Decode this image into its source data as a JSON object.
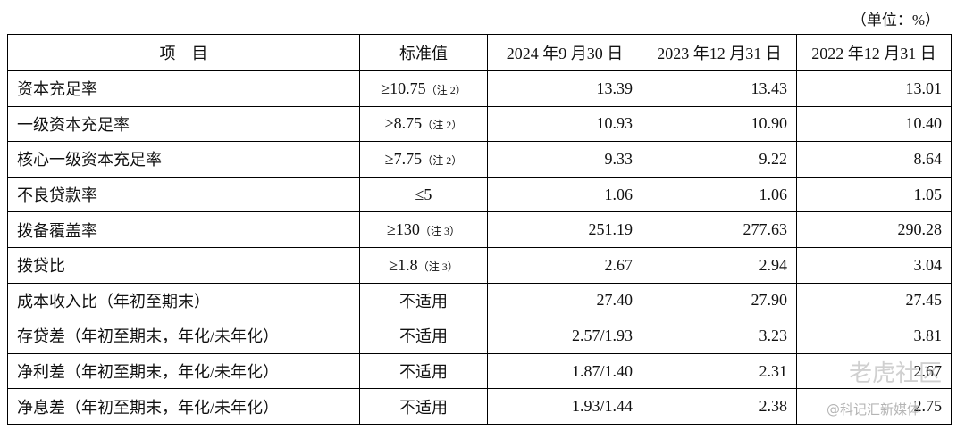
{
  "unit_note": "（单位：%）",
  "table": {
    "headers": [
      "项　目",
      "标准值",
      "2024 年9 月30 日",
      "2023 年12 月31 日",
      "2022 年12 月31 日"
    ],
    "rows": [
      {
        "item": "资本充足率",
        "standard": "≥10.75",
        "note": "（注 2）",
        "values": [
          "13.39",
          "13.43",
          "13.01"
        ]
      },
      {
        "item": "一级资本充足率",
        "standard": "≥8.75",
        "note": "（注 2）",
        "values": [
          "10.93",
          "10.90",
          "10.40"
        ]
      },
      {
        "item": "核心一级资本充足率",
        "standard": "≥7.75",
        "note": "（注 2）",
        "values": [
          "9.33",
          "9.22",
          "8.64"
        ]
      },
      {
        "item": "不良贷款率",
        "standard": "≤5",
        "values": [
          "1.06",
          "1.06",
          "1.05"
        ]
      },
      {
        "item": "拨备覆盖率",
        "standard": "≥130",
        "note": "（注 3）",
        "values": [
          "251.19",
          "277.63",
          "290.28"
        ]
      },
      {
        "item": "拨贷比",
        "standard": "≥1.8",
        "note": "（注 3）",
        "values": [
          "2.67",
          "2.94",
          "3.04"
        ]
      },
      {
        "item": "成本收入比（年初至期末）",
        "standard": "不适用",
        "values": [
          "27.40",
          "27.90",
          "27.45"
        ]
      },
      {
        "item": "存贷差（年初至期末，年化/未年化）",
        "standard": "不适用",
        "values": [
          "2.57/1.93",
          "3.23",
          "3.81"
        ]
      },
      {
        "item": "净利差（年初至期末，年化/未年化）",
        "standard": "不适用",
        "values": [
          "1.87/1.40",
          "2.31",
          "2.67"
        ]
      },
      {
        "item": "净息差（年初至期末，年化/未年化）",
        "standard": "不适用",
        "values": [
          "1.93/1.44",
          "2.38",
          "2.75"
        ]
      }
    ]
  },
  "watermark": {
    "brand": "老虎社区",
    "source": "@科记汇新媒体"
  }
}
